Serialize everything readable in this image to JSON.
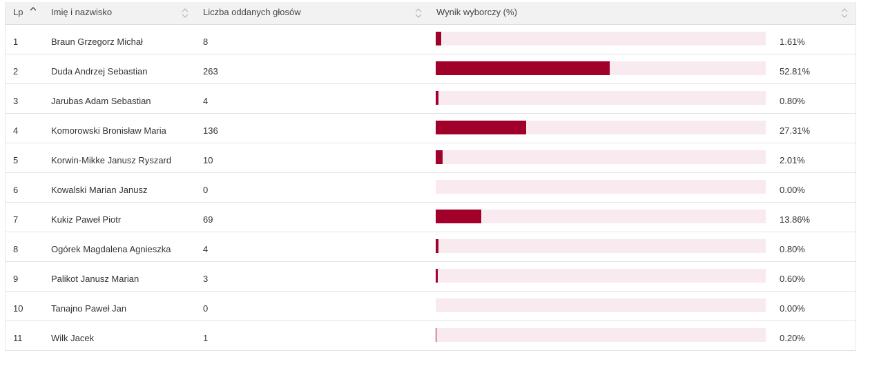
{
  "header": {
    "lp": "Lp",
    "name": "Imię i nazwisko",
    "votes": "Liczba oddanych głosów",
    "result": "Wynik wyborczy (%)"
  },
  "rows": [
    {
      "lp": "1",
      "name": "Braun Grzegorz Michał",
      "votes": "8",
      "percent": "1.61%",
      "share": 1.61
    },
    {
      "lp": "2",
      "name": "Duda Andrzej Sebastian",
      "votes": "263",
      "percent": "52.81%",
      "share": 52.81
    },
    {
      "lp": "3",
      "name": "Jarubas Adam Sebastian",
      "votes": "4",
      "percent": "0.80%",
      "share": 0.8
    },
    {
      "lp": "4",
      "name": "Komorowski Bronisław Maria",
      "votes": "136",
      "percent": "27.31%",
      "share": 27.31
    },
    {
      "lp": "5",
      "name": "Korwin-Mikke Janusz Ryszard",
      "votes": "10",
      "percent": "2.01%",
      "share": 2.01
    },
    {
      "lp": "6",
      "name": "Kowalski Marian Janusz",
      "votes": "0",
      "percent": "0.00%",
      "share": 0.0
    },
    {
      "lp": "7",
      "name": "Kukiz Paweł Piotr",
      "votes": "69",
      "percent": "13.86%",
      "share": 13.86
    },
    {
      "lp": "8",
      "name": "Ogórek Magdalena Agnieszka",
      "votes": "4",
      "percent": "0.80%",
      "share": 0.8
    },
    {
      "lp": "9",
      "name": "Palikot Janusz Marian",
      "votes": "3",
      "percent": "0.60%",
      "share": 0.6
    },
    {
      "lp": "10",
      "name": "Tanajno Paweł Jan",
      "votes": "0",
      "percent": "0.00%",
      "share": 0.0
    },
    {
      "lp": "11",
      "name": "Wilk Jacek",
      "votes": "1",
      "percent": "0.20%",
      "share": 0.2
    }
  ],
  "colors": {
    "bar_fill": "#a0002a",
    "bar_track": "#f8eaee",
    "header_bg": "#f2f2f2"
  },
  "icons": {
    "lp_sort": "sort-ascending-icon",
    "other_sort": "sort-both-icon"
  }
}
